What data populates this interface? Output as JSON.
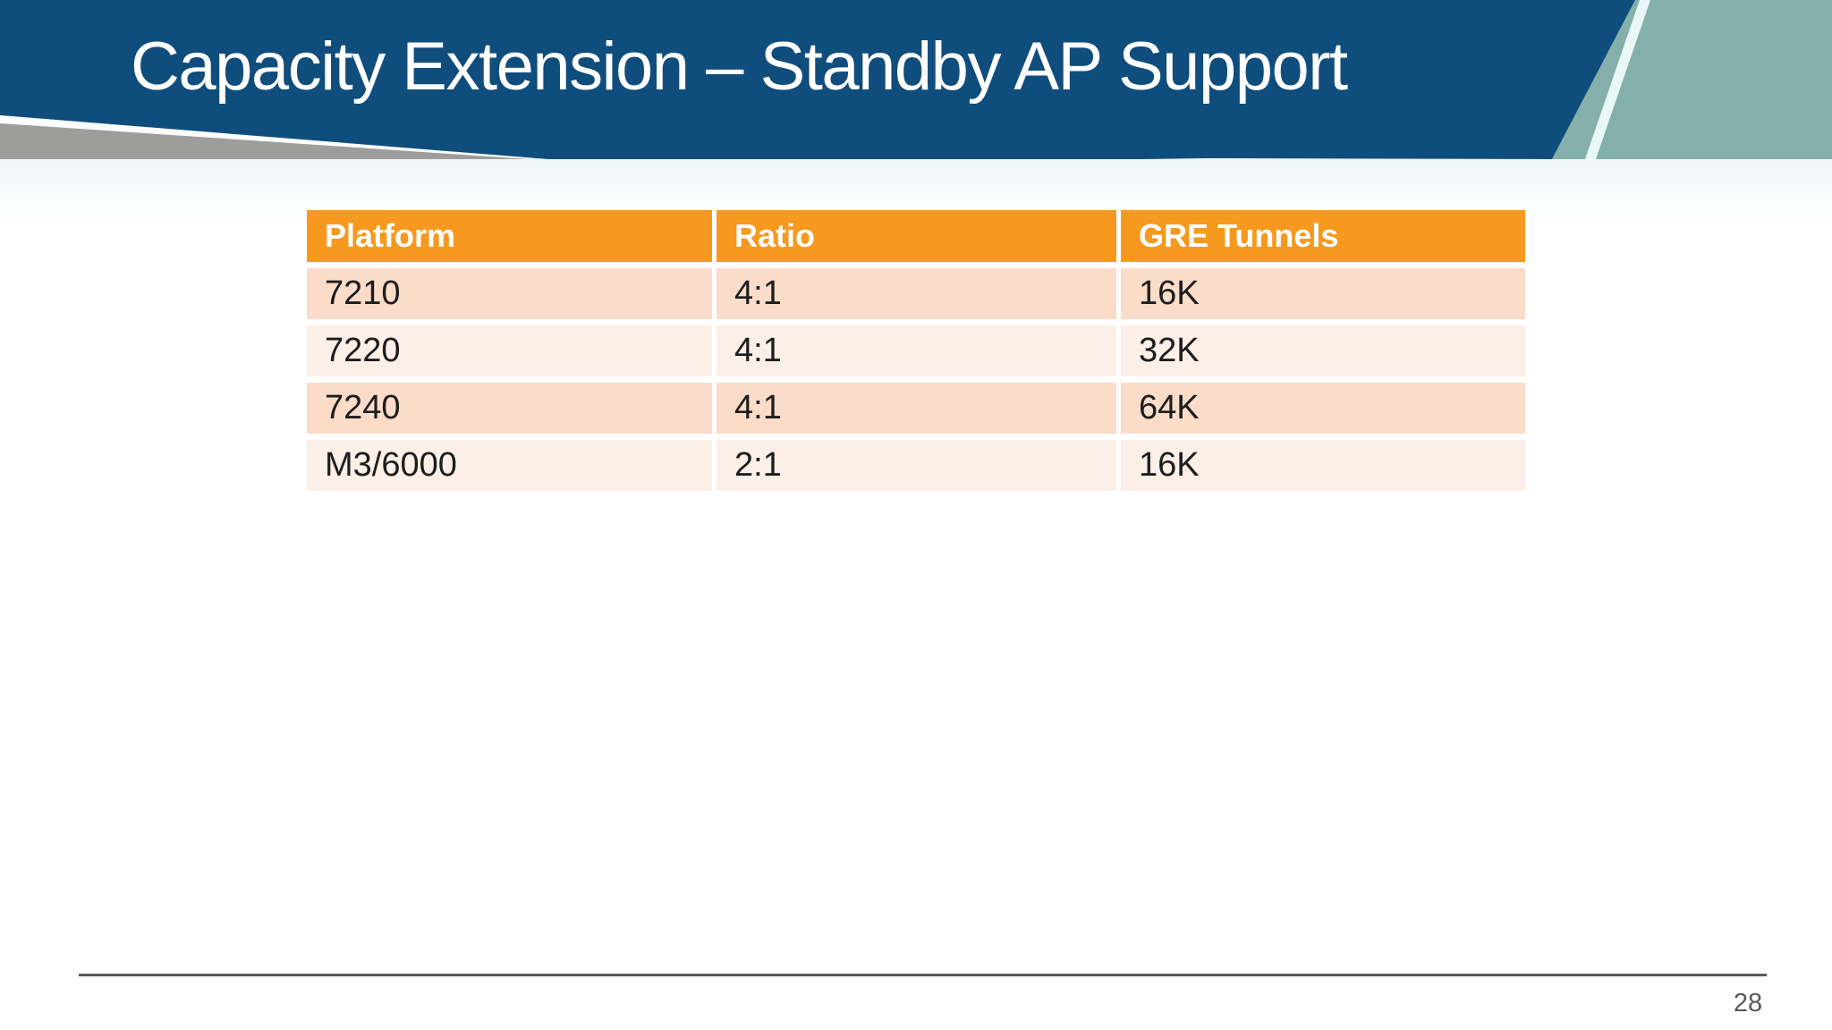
{
  "slide": {
    "title": "Capacity Extension – Standby AP Support",
    "page_number": "28"
  },
  "table": {
    "columns": [
      "Platform",
      "Ratio",
      "GRE Tunnels"
    ],
    "rows": [
      [
        "7210",
        "4:1",
        "16K"
      ],
      [
        "7220",
        "4:1",
        "32K"
      ],
      [
        "7240",
        "4:1",
        "64K"
      ],
      [
        "M3/6000",
        "2:1",
        "16K"
      ]
    ]
  },
  "colors": {
    "header_blue": "#0F4D7C",
    "teal_accent": "#85AFAA",
    "gray_accent": "#9D9D9B",
    "table_header_orange": "#F6991E",
    "row_peach_dark": "#FADCC9",
    "row_peach_light": "#FCEFE7",
    "footer_line_gray": "#58595B",
    "slide_bg": "#FFFFFF"
  }
}
